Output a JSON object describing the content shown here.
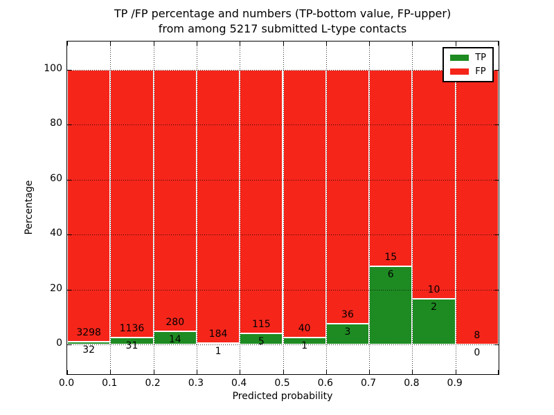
{
  "figure": {
    "title_line1": "TP /FP percentage and numbers (TP-bottom value, FP-upper)",
    "title_line2": "from among 5217 submitted L-type contacts",
    "total_contacts": 5217
  },
  "chart_data": {
    "type": "bar",
    "stacked": true,
    "normalized_to_percent": true,
    "title": "TP /FP percentage and numbers (TP-bottom value, FP-upper)\nfrom among 5217 submitted L-type contacts",
    "xlabel": "Predicted probability",
    "ylabel": "Percentage",
    "bin_edges": [
      0.0,
      0.1,
      0.2,
      0.3,
      0.4,
      0.5,
      0.6,
      0.7,
      0.8,
      0.9,
      1.0
    ],
    "series": [
      {
        "name": "TP",
        "color": "#1e8b22",
        "counts": [
          32,
          31,
          14,
          1,
          5,
          1,
          3,
          6,
          2,
          0
        ]
      },
      {
        "name": "FP",
        "color": "#f5251a",
        "counts": [
          3298,
          1136,
          280,
          184,
          115,
          40,
          36,
          15,
          10,
          8
        ]
      }
    ],
    "tp_percent": [
      0.96,
      2.66,
      4.76,
      0.54,
      4.17,
      2.44,
      7.69,
      28.57,
      16.67,
      0.0
    ],
    "bar_total_percent": 100,
    "xticks": [
      "0.0",
      "0.1",
      "0.2",
      "0.3",
      "0.4",
      "0.5",
      "0.6",
      "0.7",
      "0.8",
      "0.9"
    ],
    "yticks": [
      "0",
      "20",
      "40",
      "60",
      "80",
      "100"
    ],
    "ytick_values": [
      0,
      20,
      40,
      60,
      80,
      100
    ],
    "xlim": [
      0.0,
      1.0
    ],
    "ylim": [
      -10.8,
      110.3
    ],
    "grid": "dotted",
    "bar_edge_color": "#ffffff",
    "legend": {
      "position": "upper right",
      "entries": [
        "TP",
        "FP"
      ]
    }
  }
}
